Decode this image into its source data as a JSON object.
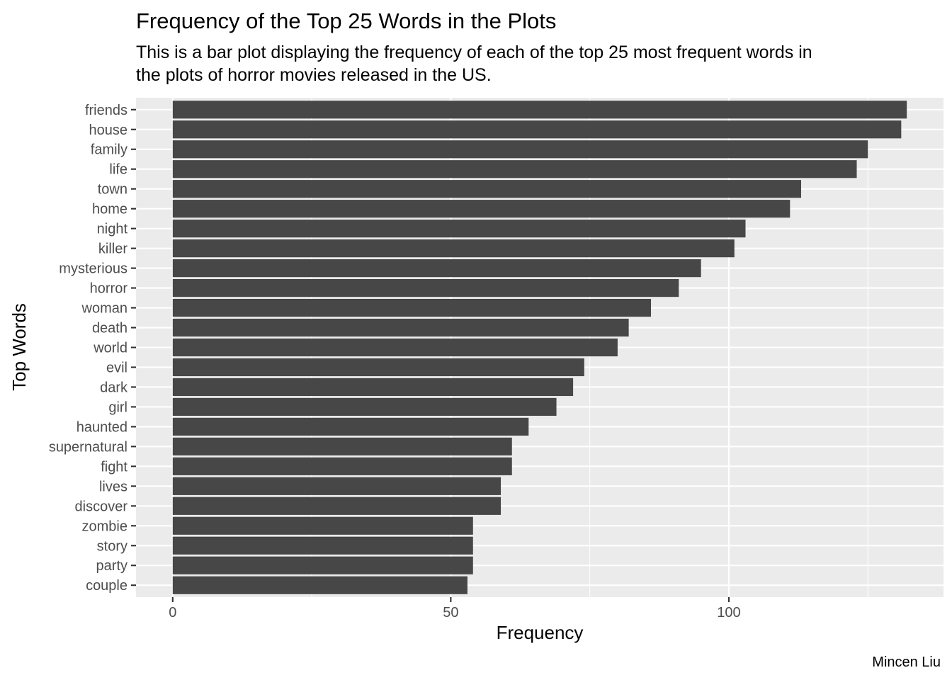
{
  "chart_data": {
    "type": "bar",
    "orientation": "horizontal",
    "title": "Frequency of the Top 25 Words in the Plots",
    "subtitle_lines": [
      "This is a bar plot displaying the frequency of each of the top 25 most frequent words in",
      "the plots of horror movies released in the US."
    ],
    "xlabel": "Frequency",
    "ylabel": "Top Words",
    "caption": "Mincen Liu",
    "categories": [
      "friends",
      "house",
      "family",
      "life",
      "town",
      "home",
      "night",
      "killer",
      "mysterious",
      "horror",
      "woman",
      "death",
      "world",
      "evil",
      "dark",
      "girl",
      "haunted",
      "supernatural",
      "fight",
      "lives",
      "discover",
      "zombie",
      "story",
      "party",
      "couple"
    ],
    "values": [
      132,
      131,
      125,
      123,
      113,
      111,
      103,
      101,
      95,
      91,
      86,
      82,
      80,
      74,
      72,
      69,
      64,
      61,
      61,
      59,
      59,
      54,
      54,
      54,
      53
    ],
    "x_ticks": [
      0,
      50,
      100
    ],
    "x_tick_labels": [
      "0",
      "50",
      "100"
    ],
    "xlim": [
      -6.6,
      138.6
    ],
    "grid": true,
    "colors": {
      "bar": "#474747",
      "panel": "#ebebeb",
      "grid": "#ffffff"
    }
  }
}
